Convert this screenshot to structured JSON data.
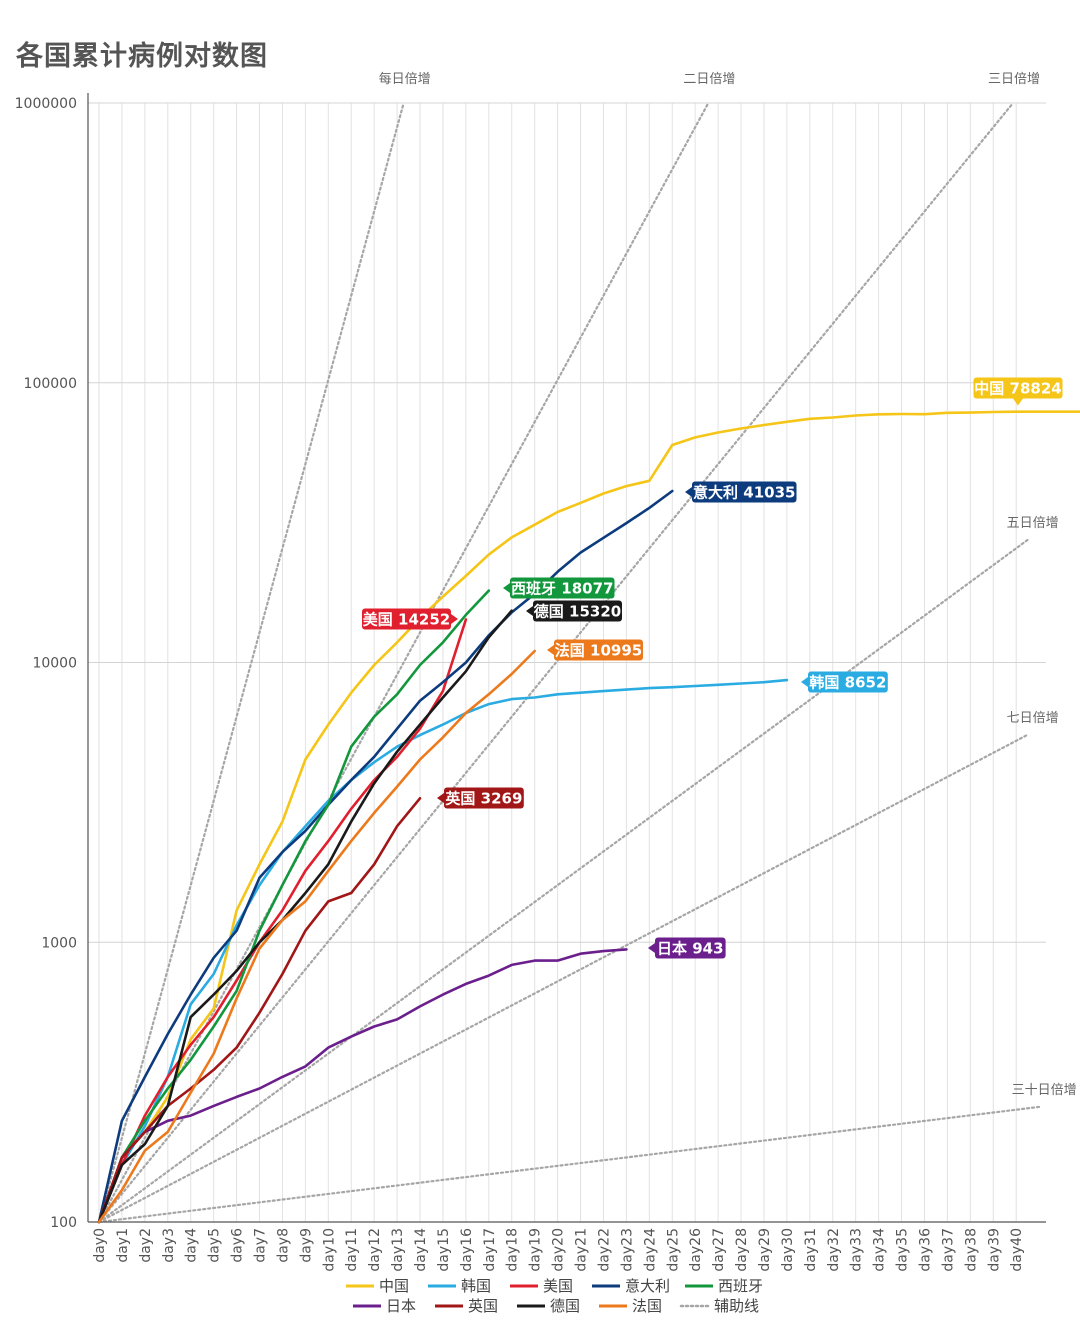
{
  "chart_data": {
    "type": "line",
    "title": "各国累计病例对数图",
    "y_scale": "log",
    "ylim": [
      100,
      1000000
    ],
    "y_ticks": [
      "100",
      "1000",
      "10000",
      "100000",
      "1000000"
    ],
    "x_categories": [
      "day0",
      "day1",
      "day2",
      "day3",
      "day4",
      "day5",
      "day6",
      "day7",
      "day8",
      "day9",
      "day10",
      "day11",
      "day12",
      "day13",
      "day14",
      "day15",
      "day16",
      "day17",
      "day18",
      "day19",
      "day20",
      "day21",
      "day22",
      "day23",
      "day24",
      "day25",
      "day26",
      "day27",
      "day28",
      "day29",
      "day30",
      "day31",
      "day32",
      "day33",
      "day34",
      "day35",
      "day36",
      "day37",
      "day38",
      "day39",
      "day40"
    ],
    "grid": true,
    "legend_position": "bottom",
    "series": [
      {
        "name": "中国",
        "color": "#F5C518",
        "label": "中国 78824",
        "values": [
          100,
          170,
          210,
          280,
          450,
          580,
          1300,
          1900,
          2700,
          4500,
          6000,
          7800,
          9800,
          11800,
          14400,
          17200,
          20400,
          24300,
          28000,
          31100,
          34500,
          37200,
          40200,
          42700,
          44600,
          59900,
          63800,
          66400,
          68600,
          70600,
          72500,
          74300,
          75100,
          76400,
          77100,
          77300,
          77200,
          78100,
          78200,
          78600,
          78824
        ]
      },
      {
        "name": "韩国",
        "color": "#2AACE2",
        "label": "韩国 8652",
        "values": [
          100,
          160,
          220,
          330,
          600,
          770,
          1150,
          1600,
          2100,
          2600,
          3200,
          3800,
          4400,
          5000,
          5500,
          6000,
          6600,
          7100,
          7400,
          7500,
          7700,
          7800,
          7900,
          8000,
          8100,
          8160,
          8240,
          8320,
          8410,
          8500,
          8652
        ]
      },
      {
        "name": "美国",
        "color": "#E0202E",
        "label": "美国 14252",
        "values": [
          100,
          160,
          240,
          330,
          430,
          540,
          730,
          1000,
          1300,
          1800,
          2300,
          3000,
          3800,
          4600,
          5800,
          7900,
          14252
        ]
      },
      {
        "name": "意大利",
        "color": "#0D3C7E",
        "label": "意大利 41035",
        "values": [
          100,
          230,
          330,
          470,
          650,
          880,
          1100,
          1700,
          2100,
          2500,
          3100,
          3800,
          4600,
          5800,
          7300,
          8500,
          10000,
          12500,
          15100,
          17600,
          21100,
          24700,
          27900,
          31500,
          35700,
          41035
        ]
      },
      {
        "name": "西班牙",
        "color": "#13973D",
        "label": "西班牙 18077",
        "values": [
          100,
          170,
          230,
          300,
          380,
          500,
          670,
          1100,
          1600,
          2300,
          3100,
          5000,
          6400,
          7700,
          9800,
          11800,
          14800,
          18077
        ]
      },
      {
        "name": "日本",
        "color": "#6B1F8C",
        "label": "日本 943",
        "values": [
          100,
          170,
          210,
          230,
          240,
          260,
          280,
          300,
          330,
          360,
          420,
          460,
          500,
          530,
          590,
          650,
          710,
          760,
          830,
          860,
          860,
          910,
          930,
          943
        ]
      },
      {
        "name": "英国",
        "color": "#A11616",
        "label": "英国 3269",
        "values": [
          100,
          170,
          210,
          260,
          300,
          350,
          420,
          560,
          770,
          1100,
          1400,
          1500,
          1900,
          2600,
          3269
        ]
      },
      {
        "name": "德国",
        "color": "#1A1A1A",
        "label": "德国 15320",
        "values": [
          100,
          160,
          190,
          260,
          540,
          650,
          790,
          1000,
          1200,
          1500,
          1900,
          2700,
          3700,
          4800,
          6000,
          7500,
          9300,
          12300,
          15320
        ]
      },
      {
        "name": "法国",
        "color": "#EC7A1C",
        "label": "法国 10995",
        "values": [
          100,
          130,
          180,
          210,
          290,
          400,
          630,
          950,
          1200,
          1400,
          1800,
          2300,
          2900,
          3600,
          4500,
          5400,
          6600,
          7700,
          9100,
          10995
        ]
      }
    ],
    "guide_lines": {
      "name": "辅助线",
      "color": "#A6A6A6",
      "lines": [
        {
          "label": "每日倍增",
          "doubling_days": 1
        },
        {
          "label": "二日倍增",
          "doubling_days": 2
        },
        {
          "label": "三日倍增",
          "doubling_days": 3
        },
        {
          "label": "五日倍增",
          "doubling_days": 5
        },
        {
          "label": "七日倍增",
          "doubling_days": 7
        },
        {
          "label": "三十日倍增",
          "doubling_days": 30
        }
      ]
    }
  }
}
